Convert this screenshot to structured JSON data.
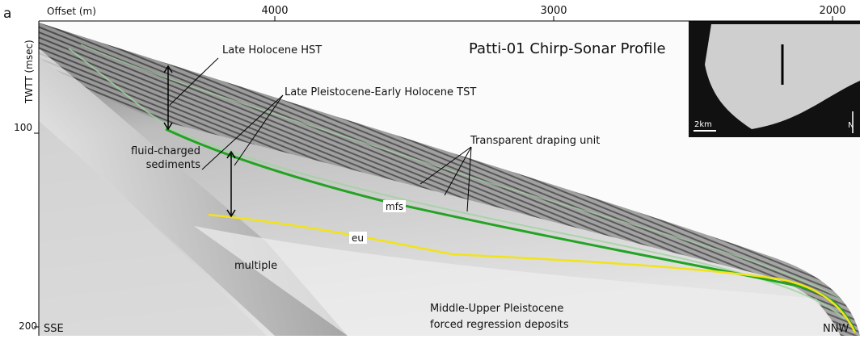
{
  "panel_label": "a",
  "title": "Patti-01 Chirp-Sonar Profile",
  "axes": {
    "x_label": "Offset (m)",
    "x_ticks": [
      "4000",
      "3000",
      "2000"
    ],
    "y_label": "TWTT (msec)",
    "y_ticks": [
      "100",
      "200"
    ]
  },
  "annotations": {
    "hst": "Late Holocene HST",
    "tst": "Late Pleistocene-Early Holocene TST",
    "fluid": [
      "fluid-charged",
      "sediments"
    ],
    "draping": "Transparent draping unit",
    "mfs": "mfs",
    "eu": "eu",
    "multiple": "multiple",
    "deposits": [
      "Middle-Upper Pleistocene",
      "forced regression deposits"
    ]
  },
  "directions": {
    "left": "SSE",
    "right": "NNW"
  },
  "inset": {
    "scale": "2km",
    "north": "N"
  }
}
